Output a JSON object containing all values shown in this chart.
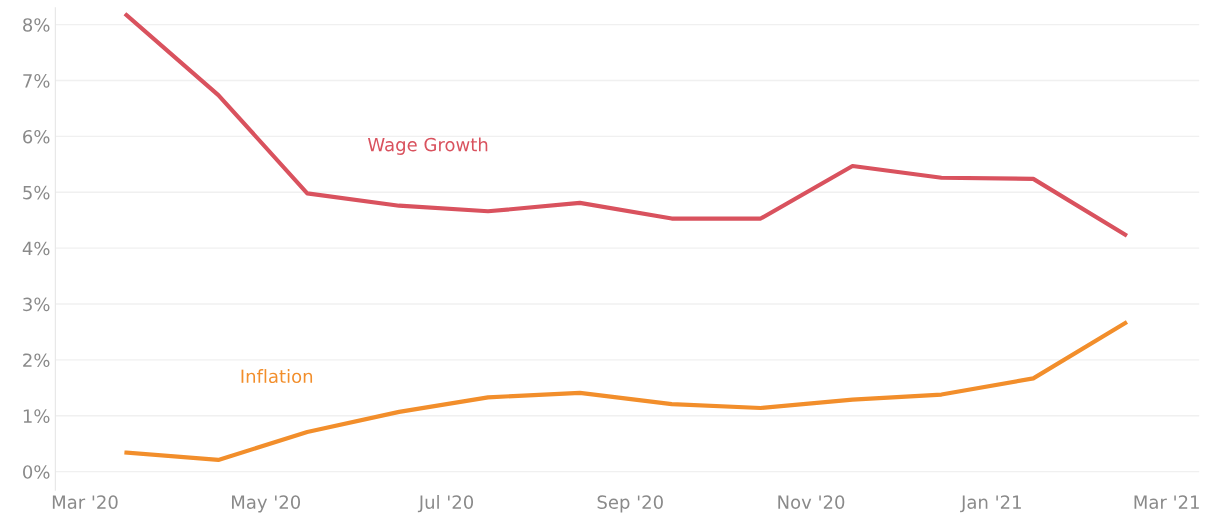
{
  "chart_data": {
    "type": "line",
    "x": [
      "2020-03-15",
      "2020-04-15",
      "2020-05-15",
      "2020-06-15",
      "2020-07-15",
      "2020-08-15",
      "2020-09-15",
      "2020-10-15",
      "2020-11-15",
      "2020-12-15",
      "2021-01-15",
      "2021-02-15"
    ],
    "series": [
      {
        "name": "Wage Growth",
        "color": "#d9525e",
        "values": [
          8.17,
          6.74,
          4.98,
          4.76,
          4.66,
          4.81,
          4.53,
          4.53,
          5.47,
          5.26,
          5.24,
          4.24
        ]
      },
      {
        "name": "Inflation",
        "color": "#f28e2b",
        "values": [
          0.34,
          0.21,
          0.71,
          1.07,
          1.33,
          1.41,
          1.21,
          1.14,
          1.29,
          1.38,
          1.67,
          2.66
        ]
      }
    ],
    "ylim": [
      -0.33,
      8.3
    ],
    "yticks": [
      {
        "value": 0,
        "label": "0%"
      },
      {
        "value": 1,
        "label": "1%"
      },
      {
        "value": 2,
        "label": "2%"
      },
      {
        "value": 3,
        "label": "3%"
      },
      {
        "value": 4,
        "label": "4%"
      },
      {
        "value": 5,
        "label": "5%"
      },
      {
        "value": 6,
        "label": "6%"
      },
      {
        "value": 7,
        "label": "7%"
      },
      {
        "value": 8,
        "label": "8%"
      }
    ],
    "xlim": [
      "2020-02-20",
      "2021-03-12"
    ],
    "xticks": [
      {
        "value": "2020-03-01",
        "label": "Mar '20"
      },
      {
        "value": "2020-05-01",
        "label": "May '20"
      },
      {
        "value": "2020-07-01",
        "label": "Jul '20"
      },
      {
        "value": "2020-09-01",
        "label": "Sep '20"
      },
      {
        "value": "2020-11-01",
        "label": "Nov '20"
      },
      {
        "value": "2021-01-01",
        "label": "Jan '21"
      },
      {
        "value": "2021-03-01",
        "label": "Mar '21"
      }
    ],
    "grid": "y",
    "marker": "none",
    "line_style": "solid"
  }
}
